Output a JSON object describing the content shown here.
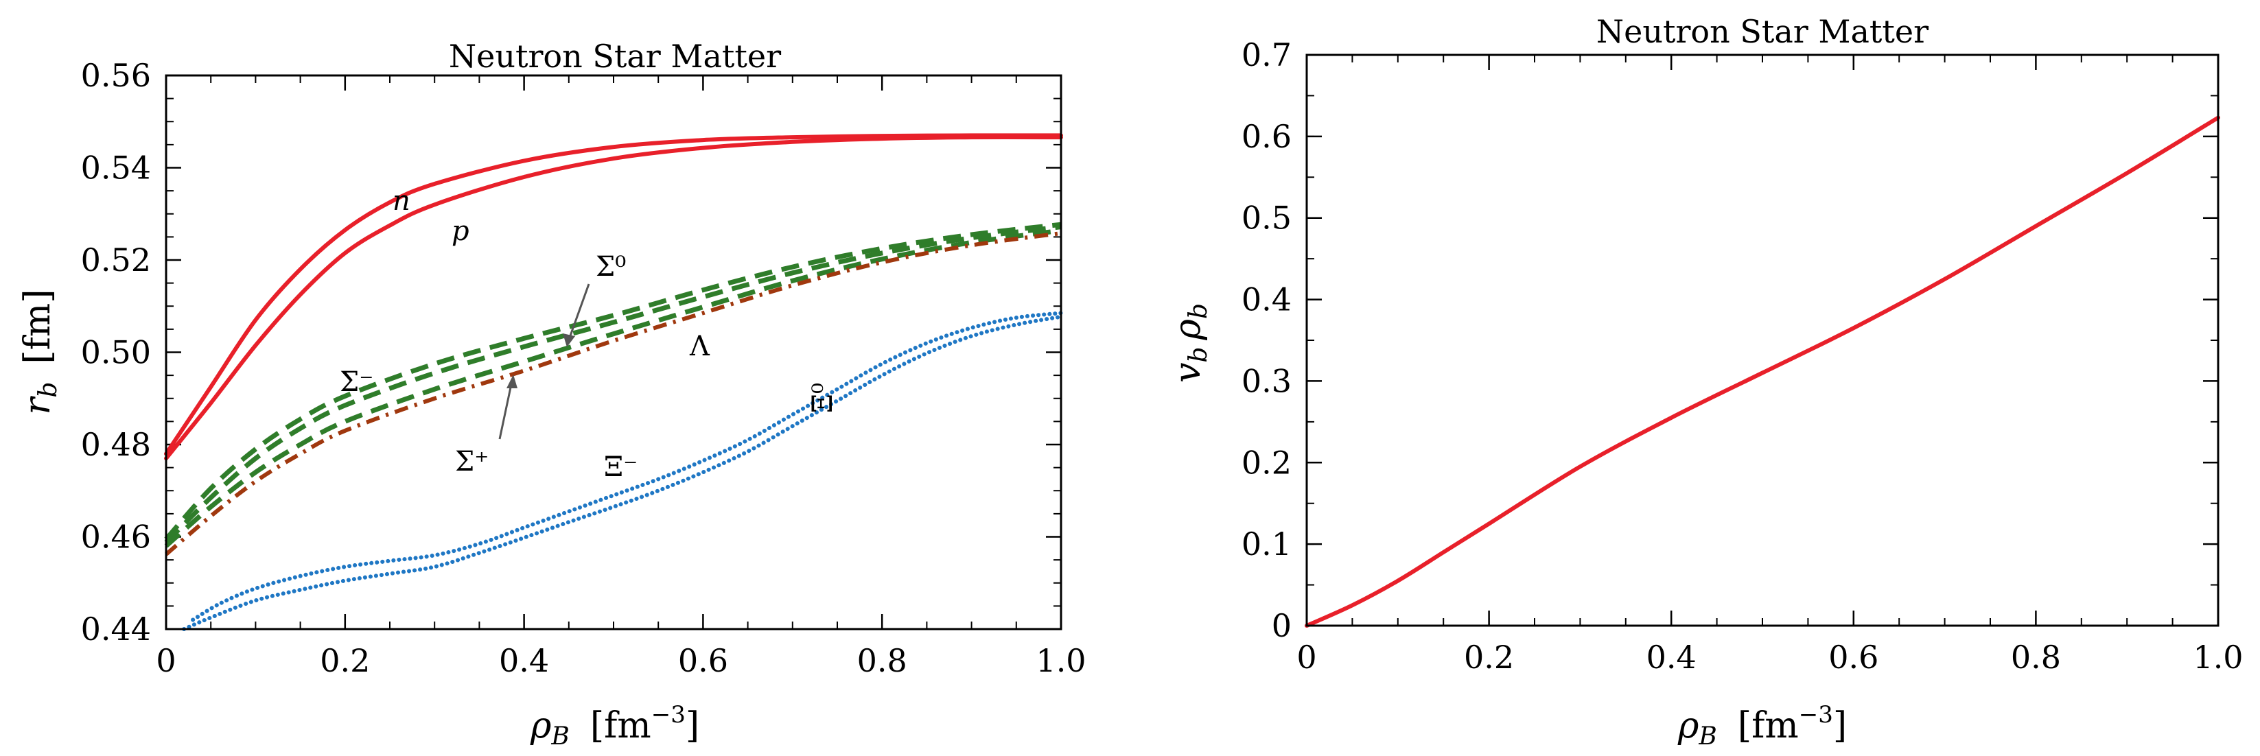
{
  "colors": {
    "nucleon": "#e8202a",
    "sigma": "#2f7d2a",
    "lambda": "#a0380e",
    "xi": "#1f77c4",
    "arrow": "#555555",
    "axis": "#000000"
  },
  "chart_data": [
    {
      "type": "line",
      "title": "Neutron Star Matter",
      "xlabel_symbol": "ρ",
      "xlabel_sub": "B",
      "xlabel_unit": "[fm",
      "xlabel_exp": "−3",
      "xlabel_close": "]",
      "ylabel_symbol": "r",
      "ylabel_sub": "b",
      "ylabel_unit": "[fm]",
      "xlim": [
        0,
        1.0
      ],
      "ylim": [
        0.44,
        0.56
      ],
      "xticks": [
        0,
        0.2,
        0.4,
        0.6,
        0.8,
        1.0
      ],
      "xtick_labels": [
        "0",
        "0.2",
        "0.4",
        "0.6",
        "0.8",
        "1.0"
      ],
      "yticks": [
        0.44,
        0.46,
        0.48,
        0.5,
        0.52,
        0.54,
        0.56
      ],
      "ytick_labels": [
        "0.44",
        "0.46",
        "0.48",
        "0.50",
        "0.52",
        "0.54",
        "0.56"
      ],
      "series": [
        {
          "name": "n",
          "style": "solid",
          "color": "nucleon",
          "x": [
            0,
            0.05,
            0.1,
            0.15,
            0.2,
            0.25,
            0.3,
            0.4,
            0.5,
            0.6,
            0.7,
            0.8,
            0.9,
            1.0
          ],
          "y": [
            0.478,
            0.4925,
            0.507,
            0.518,
            0.5265,
            0.5325,
            0.5365,
            0.5415,
            0.5445,
            0.546,
            0.5466,
            0.5469,
            0.547,
            0.547
          ]
        },
        {
          "name": "p",
          "style": "solid",
          "color": "nucleon",
          "x": [
            0,
            0.05,
            0.1,
            0.15,
            0.2,
            0.25,
            0.3,
            0.4,
            0.5,
            0.6,
            0.7,
            0.8,
            0.9,
            1.0
          ],
          "y": [
            0.477,
            0.489,
            0.5015,
            0.5125,
            0.5215,
            0.5275,
            0.532,
            0.538,
            0.542,
            0.5443,
            0.5456,
            0.5463,
            0.5466,
            0.5466
          ]
        },
        {
          "name": "Σ⁻",
          "style": "dash",
          "color": "sigma",
          "x": [
            0,
            0.05,
            0.1,
            0.15,
            0.2,
            0.3,
            0.4,
            0.5,
            0.6,
            0.7,
            0.8,
            0.9,
            1.0
          ],
          "y": [
            0.4595,
            0.4705,
            0.479,
            0.4855,
            0.4905,
            0.4975,
            0.503,
            0.508,
            0.5135,
            0.5185,
            0.5225,
            0.5255,
            0.5277
          ]
        },
        {
          "name": "Σ⁰",
          "style": "dash",
          "color": "sigma",
          "x": [
            0,
            0.05,
            0.1,
            0.15,
            0.2,
            0.3,
            0.4,
            0.5,
            0.6,
            0.7,
            0.8,
            0.9,
            1.0
          ],
          "y": [
            0.4588,
            0.4685,
            0.477,
            0.4835,
            0.4885,
            0.4955,
            0.5012,
            0.5065,
            0.512,
            0.5172,
            0.5215,
            0.5248,
            0.5272
          ]
        },
        {
          "name": "Σ⁺",
          "style": "dash",
          "color": "sigma",
          "x": [
            0,
            0.05,
            0.1,
            0.15,
            0.2,
            0.3,
            0.4,
            0.5,
            0.6,
            0.7,
            0.8,
            0.9,
            1.0
          ],
          "y": [
            0.458,
            0.4665,
            0.474,
            0.48,
            0.485,
            0.492,
            0.498,
            0.504,
            0.5098,
            0.5155,
            0.5202,
            0.5238,
            0.5264
          ]
        },
        {
          "name": "Λ",
          "style": "dashdot",
          "color": "lambda",
          "x": [
            0,
            0.05,
            0.1,
            0.15,
            0.2,
            0.3,
            0.4,
            0.5,
            0.6,
            0.7,
            0.8,
            0.9,
            1.0
          ],
          "y": [
            0.4562,
            0.4645,
            0.472,
            0.478,
            0.483,
            0.49,
            0.496,
            0.5025,
            0.5085,
            0.5145,
            0.5195,
            0.5232,
            0.5258
          ]
        },
        {
          "name": "Ξ⁻",
          "style": "dot",
          "color": "xi",
          "x": [
            0.03,
            0.06,
            0.1,
            0.15,
            0.2,
            0.25,
            0.3,
            0.35,
            0.4,
            0.45,
            0.5,
            0.55,
            0.6,
            0.65,
            0.7,
            0.75,
            0.8,
            0.85,
            0.9,
            0.95,
            1.0
          ],
          "y": [
            0.442,
            0.4455,
            0.4488,
            0.4515,
            0.4535,
            0.4548,
            0.456,
            0.4585,
            0.462,
            0.4655,
            0.469,
            0.4725,
            0.4765,
            0.481,
            0.4865,
            0.492,
            0.4975,
            0.502,
            0.5053,
            0.5075,
            0.5085
          ]
        },
        {
          "name": "Ξ⁰",
          "style": "dot",
          "color": "xi",
          "x": [
            0.02,
            0.05,
            0.1,
            0.15,
            0.2,
            0.25,
            0.3,
            0.35,
            0.4,
            0.45,
            0.5,
            0.55,
            0.6,
            0.65,
            0.7,
            0.75,
            0.8,
            0.85,
            0.9,
            0.95,
            1.0
          ],
          "y": [
            0.44,
            0.4425,
            0.4462,
            0.4485,
            0.4505,
            0.452,
            0.4535,
            0.4565,
            0.4598,
            0.4632,
            0.4665,
            0.47,
            0.474,
            0.4785,
            0.484,
            0.4895,
            0.495,
            0.4998,
            0.5035,
            0.506,
            0.5077
          ]
        }
      ],
      "annotations": {
        "n": "n",
        "p": "p",
        "sigma_minus": "Σ⁻",
        "sigma_zero": "Σ⁰",
        "sigma_plus": "Σ⁺",
        "lambda": "Λ",
        "xi_minus": "Ξ⁻",
        "xi_zero": "Ξ⁰"
      }
    },
    {
      "type": "line",
      "title": "Neutron Star Matter",
      "xlabel_symbol": "ρ",
      "xlabel_sub": "B",
      "xlabel_unit": "[fm",
      "xlabel_exp": "−3",
      "xlabel_close": "]",
      "ylabel": "vb ρb",
      "ylabel_v": "v",
      "ylabel_v_sub": "b",
      "ylabel_rho": "ρ",
      "ylabel_rho_sub": "b",
      "xlim": [
        0,
        1.0
      ],
      "ylim": [
        0,
        0.7
      ],
      "xticks": [
        0,
        0.2,
        0.4,
        0.6,
        0.8,
        1.0
      ],
      "xtick_labels": [
        "0",
        "0.2",
        "0.4",
        "0.6",
        "0.8",
        "1.0"
      ],
      "yticks": [
        0,
        0.1,
        0.2,
        0.3,
        0.4,
        0.5,
        0.6,
        0.7
      ],
      "ytick_labels": [
        "0",
        "0.1",
        "0.2",
        "0.3",
        "0.4",
        "0.5",
        "0.6",
        "0.7"
      ],
      "series": [
        {
          "name": "vb ρb",
          "style": "solid",
          "color": "nucleon",
          "x": [
            0,
            0.05,
            0.1,
            0.15,
            0.2,
            0.3,
            0.4,
            0.5,
            0.6,
            0.7,
            0.8,
            0.9,
            1.0
          ],
          "y": [
            0,
            0.025,
            0.055,
            0.09,
            0.125,
            0.195,
            0.255,
            0.31,
            0.365,
            0.425,
            0.49,
            0.555,
            0.623
          ]
        }
      ]
    }
  ]
}
